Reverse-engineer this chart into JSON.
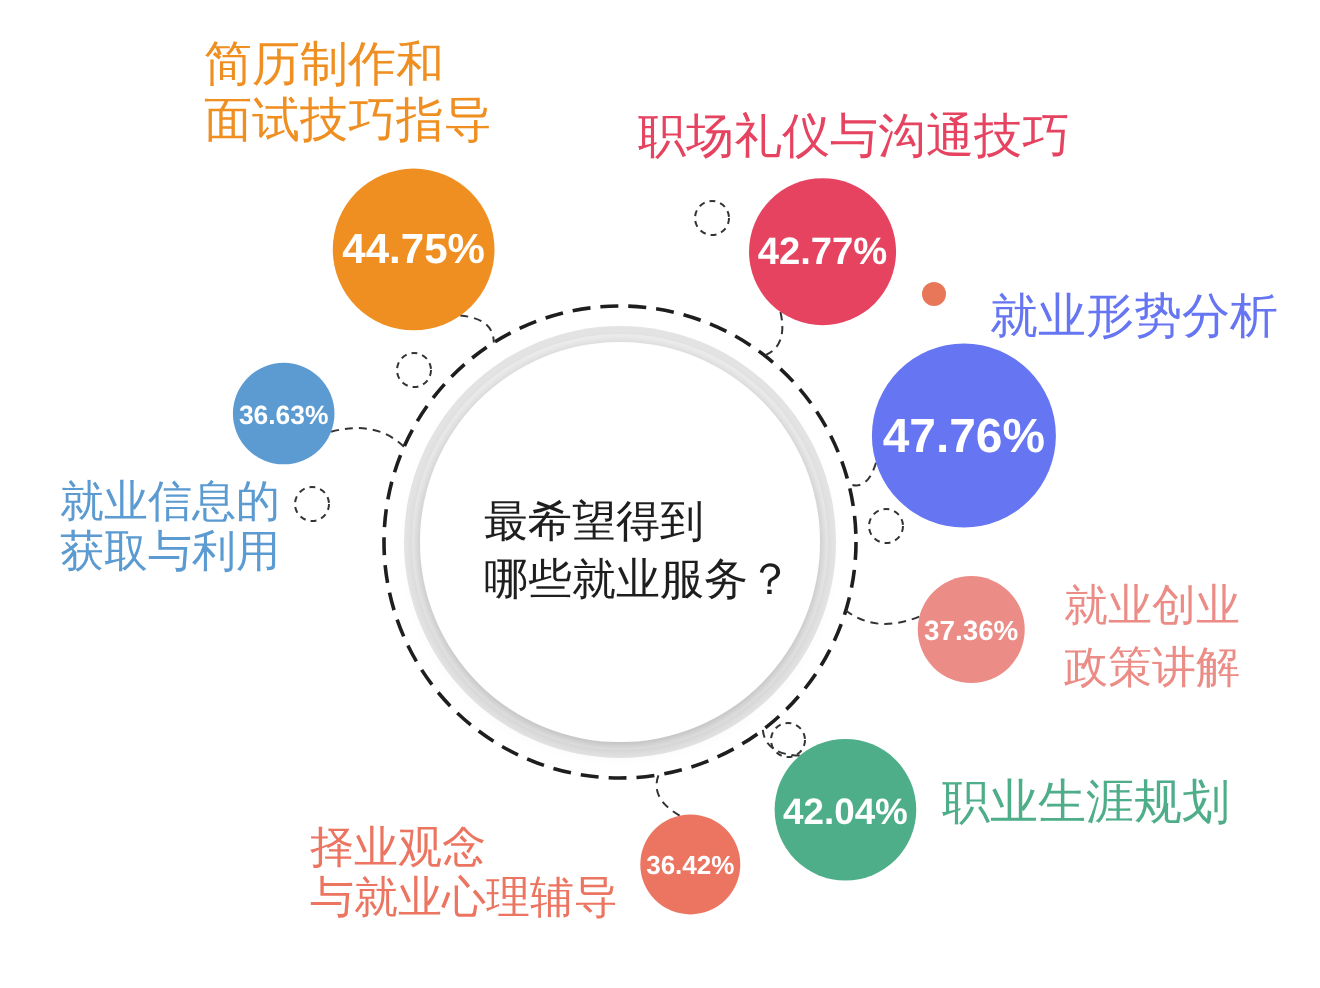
{
  "chart_data": {
    "type": "other",
    "title": "最希望得到哪些就业服务？",
    "categories": [
      "简历制作和面试技巧指导",
      "职场礼仪与沟通技巧",
      "就业形势分析",
      "就业创业政策讲解",
      "职业生涯规划",
      "择业观念与就业心理辅导",
      "就业信息的获取与利用"
    ],
    "values": [
      44.75,
      42.77,
      47.76,
      37.36,
      42.04,
      36.42,
      36.63
    ],
    "value_labels": [
      "44.75%",
      "42.77%",
      "47.76%",
      "37.36%",
      "42.04%",
      "36.42%",
      "36.63%"
    ],
    "colors": [
      "#ef8f22",
      "#e5435f",
      "#6675f2",
      "#ec8c86",
      "#4fae8a",
      "#ec7561",
      "#5b9bd1"
    ]
  }
}
